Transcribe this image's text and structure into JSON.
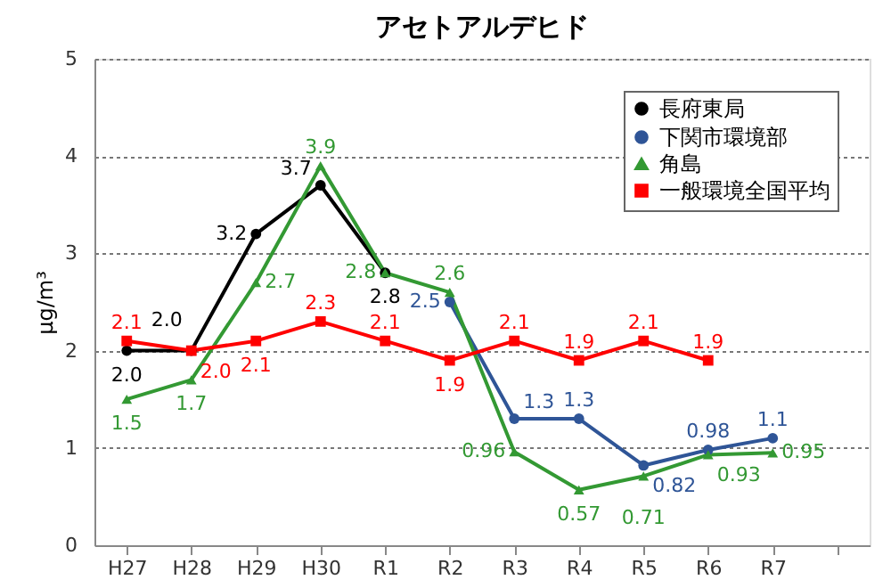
{
  "chart_data": {
    "type": "line",
    "title": "アセトアルデヒド",
    "ylabel": "μg/m³",
    "categories": [
      "H27",
      "H28",
      "H29",
      "H30",
      "R1",
      "R2",
      "R3",
      "R4",
      "R5",
      "R6",
      "R7",
      null
    ],
    "ylim": [
      0,
      5
    ],
    "yticks": [
      0,
      1,
      2,
      3,
      4,
      5
    ],
    "grid": "y",
    "legend": "top right",
    "series": [
      {
        "name": "長府東局",
        "color": "#000000",
        "marker": "circle",
        "values": [
          2.0,
          2.0,
          3.2,
          3.7,
          2.8,
          null,
          null,
          null,
          null,
          null,
          null,
          null
        ],
        "value_labels": [
          "2.0",
          "2.0",
          "3.2",
          "3.7",
          "2.8",
          null,
          null,
          null,
          null,
          null,
          null,
          null
        ]
      },
      {
        "name": "下関市環境部",
        "color": "#2f5597",
        "marker": "circle",
        "values": [
          null,
          null,
          null,
          null,
          null,
          2.5,
          1.3,
          1.3,
          0.82,
          0.98,
          1.1,
          null
        ],
        "value_labels": [
          null,
          null,
          null,
          null,
          null,
          "2.5",
          "1.3",
          "1.3",
          "0.82",
          "0.98",
          "1.1",
          null
        ]
      },
      {
        "name": "角島",
        "color": "#339933",
        "marker": "triangle",
        "values": [
          1.5,
          1.7,
          2.7,
          3.9,
          2.8,
          2.6,
          0.96,
          0.57,
          0.71,
          0.93,
          0.95,
          null
        ],
        "value_labels": [
          "1.5",
          "1.7",
          "2.7",
          "3.9",
          "2.8",
          "2.6",
          "0.96",
          "0.57",
          "0.71",
          "0.93",
          "0.95",
          null
        ]
      },
      {
        "name": "一般環境全国平均",
        "color": "#ff0000",
        "marker": "square",
        "values": [
          2.1,
          2.0,
          2.1,
          2.3,
          2.1,
          1.9,
          2.1,
          1.9,
          2.1,
          1.9,
          null,
          null
        ],
        "value_labels": [
          "2.1",
          "2.0",
          "2.1",
          "2.3",
          "2.1",
          "1.9",
          "2.1",
          "1.9",
          "2.1",
          "1.9",
          null,
          null
        ]
      }
    ]
  }
}
